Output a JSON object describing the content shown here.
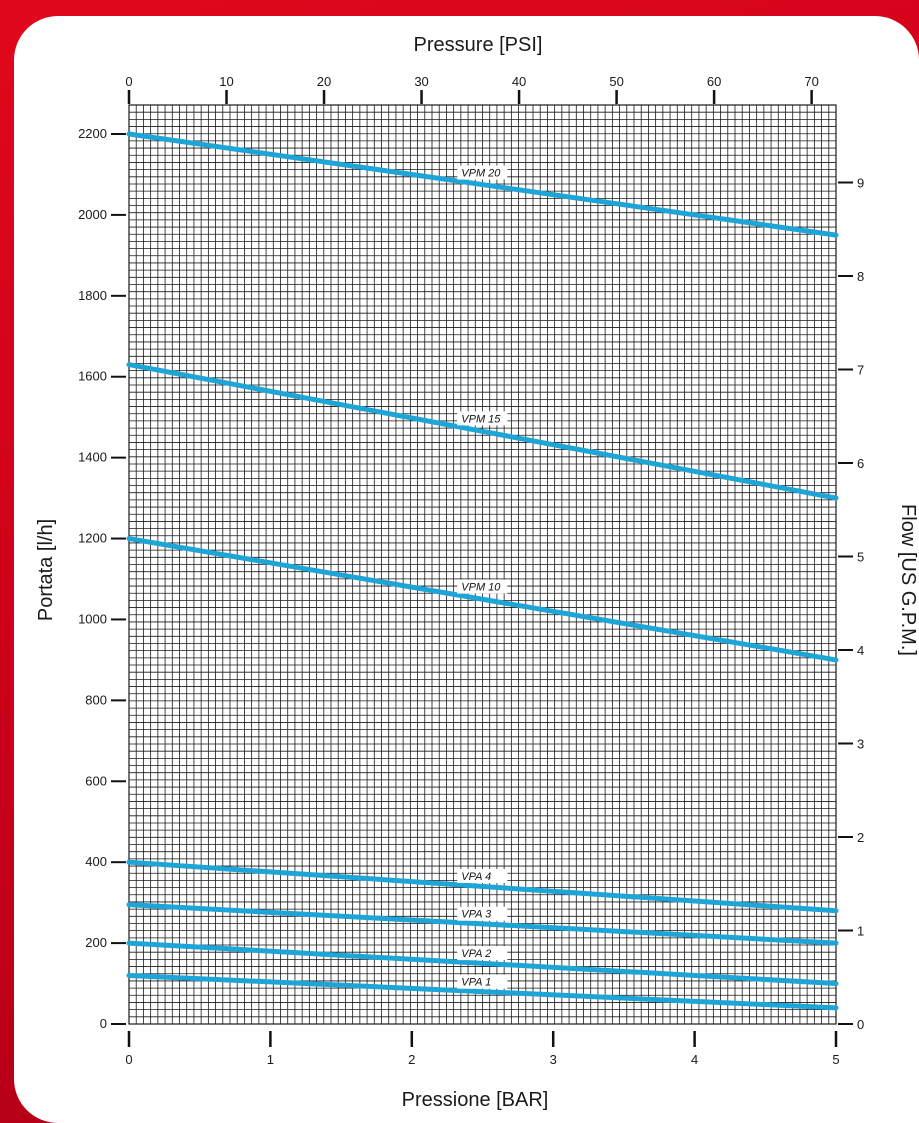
{
  "chart_data": {
    "type": "line",
    "x_top_label": "Pressure [PSI]",
    "x_bottom_label": "Pressione [BAR]",
    "y_left_label": "Portata [l/h]",
    "y_right_label": "Flow [US G.P.M.]",
    "x_bar_ticks": [
      "0",
      "1",
      "2",
      "3",
      "4",
      "5"
    ],
    "x_psi_ticks": [
      "0",
      "10",
      "20",
      "30",
      "40",
      "50",
      "60",
      "70"
    ],
    "y_lh_ticks": [
      "0",
      "200",
      "400",
      "600",
      "800",
      "1000",
      "1200",
      "1400",
      "1600",
      "1800",
      "2000",
      "2200"
    ],
    "y_gpm_ticks": [
      "0",
      "1",
      "2",
      "3",
      "4",
      "5",
      "6",
      "7",
      "8",
      "9"
    ],
    "xlim_bar": [
      0,
      5
    ],
    "ylim_lh": [
      0,
      2300
    ],
    "grid": true,
    "series": [
      {
        "name": "VPM 20",
        "x": [
          0,
          5
        ],
        "y": [
          2200,
          1950
        ]
      },
      {
        "name": "VPM 15",
        "x": [
          0,
          5
        ],
        "y": [
          1630,
          1300
        ]
      },
      {
        "name": "VPM 10",
        "x": [
          0,
          5
        ],
        "y": [
          1200,
          900
        ]
      },
      {
        "name": "VPA 4",
        "x": [
          0,
          5
        ],
        "y": [
          400,
          280
        ]
      },
      {
        "name": "VPA 3",
        "x": [
          0,
          5
        ],
        "y": [
          295,
          200
        ]
      },
      {
        "name": "VPA 2",
        "x": [
          0,
          5
        ],
        "y": [
          200,
          100
        ]
      },
      {
        "name": "VPA 1",
        "x": [
          0,
          5
        ],
        "y": [
          120,
          40
        ]
      }
    ],
    "curve_color": "#1ea5d8"
  },
  "colors": {
    "frame": "#d4061c",
    "panel": "#ffffff",
    "grid": "#1a1a1a",
    "curve": "#1ea5d8"
  }
}
